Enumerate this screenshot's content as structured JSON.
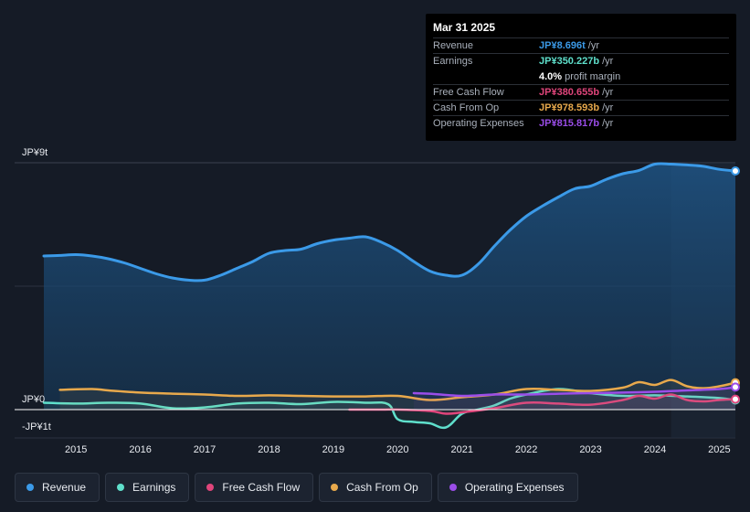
{
  "tooltip": {
    "date": "Mar 31 2025",
    "rows": [
      {
        "label": "Revenue",
        "value": "JP¥8.696t",
        "unit": "/yr",
        "color": "#3b9ae8"
      },
      {
        "label": "Earnings",
        "value": "JP¥350.227b",
        "unit": "/yr",
        "color": "#5fe0cc"
      },
      {
        "label": "",
        "value": "4.0%",
        "unit": "profit margin",
        "color": "#ffffff"
      },
      {
        "label": "Free Cash Flow",
        "value": "JP¥380.655b",
        "unit": "/yr",
        "color": "#e0457b"
      },
      {
        "label": "Cash From Op",
        "value": "JP¥978.593b",
        "unit": "/yr",
        "color": "#e8a94c"
      },
      {
        "label": "Operating Expenses",
        "value": "JP¥815.817b",
        "unit": "/yr",
        "color": "#9a4de8"
      }
    ]
  },
  "legend": [
    {
      "label": "Revenue",
      "color": "#3b9ae8"
    },
    {
      "label": "Earnings",
      "color": "#5fe0cc"
    },
    {
      "label": "Free Cash Flow",
      "color": "#e0457b"
    },
    {
      "label": "Cash From Op",
      "color": "#e8a94c"
    },
    {
      "label": "Operating Expenses",
      "color": "#9a4de8"
    }
  ],
  "chart_data": {
    "type": "area",
    "title": "",
    "xlabel": "",
    "ylabel": "",
    "y_units": "JP¥ trillion",
    "ylim": [
      -1,
      9
    ],
    "xlim": [
      2014.5,
      2025.25
    ],
    "y_tick_labels": [
      {
        "value": 9,
        "label": "JP¥9t"
      },
      {
        "value": 0,
        "label": "JP¥0"
      },
      {
        "value": -1,
        "label": "-JP¥1t"
      }
    ],
    "x_ticks": [
      2015,
      2016,
      2017,
      2018,
      2019,
      2020,
      2021,
      2022,
      2023,
      2024,
      2025
    ],
    "x_tick_labels": [
      "2015",
      "2016",
      "2017",
      "2018",
      "2019",
      "2020",
      "2021",
      "2022",
      "2023",
      "2024",
      "2025"
    ],
    "highlight_from": 2024.25,
    "series": [
      {
        "name": "Revenue",
        "color": "#3b9ae8",
        "fill": true,
        "x": [
          2014.5,
          2014.75,
          2015.0,
          2015.25,
          2015.5,
          2015.75,
          2016.0,
          2016.25,
          2016.5,
          2016.75,
          2017.0,
          2017.25,
          2017.5,
          2017.75,
          2018.0,
          2018.25,
          2018.5,
          2018.75,
          2019.0,
          2019.25,
          2019.5,
          2019.75,
          2020.0,
          2020.25,
          2020.5,
          2020.75,
          2021.0,
          2021.25,
          2021.5,
          2021.75,
          2022.0,
          2022.25,
          2022.5,
          2022.75,
          2023.0,
          2023.25,
          2023.5,
          2023.75,
          2024.0,
          2024.25,
          2024.5,
          2024.75,
          2025.0,
          2025.25
        ],
        "values": [
          5.6,
          5.62,
          5.65,
          5.6,
          5.5,
          5.35,
          5.15,
          4.95,
          4.8,
          4.72,
          4.72,
          4.9,
          5.15,
          5.4,
          5.7,
          5.8,
          5.85,
          6.05,
          6.18,
          6.25,
          6.3,
          6.1,
          5.8,
          5.4,
          5.05,
          4.9,
          4.9,
          5.3,
          5.95,
          6.55,
          7.05,
          7.42,
          7.75,
          8.05,
          8.15,
          8.4,
          8.6,
          8.72,
          8.95,
          8.95,
          8.92,
          8.87,
          8.76,
          8.7
        ]
      },
      {
        "name": "Earnings",
        "color": "#5fe0cc",
        "fill": false,
        "x": [
          2014.5,
          2015.0,
          2015.5,
          2016.0,
          2016.5,
          2017.0,
          2017.5,
          2018.0,
          2018.5,
          2019.0,
          2019.5,
          2019.85,
          2020.0,
          2020.25,
          2020.5,
          2020.75,
          2021.0,
          2021.25,
          2021.5,
          2021.75,
          2022.0,
          2022.5,
          2023.0,
          2023.5,
          2024.0,
          2024.5,
          2025.0,
          2025.25
        ],
        "values": [
          0.25,
          0.22,
          0.25,
          0.22,
          0.05,
          0.08,
          0.22,
          0.25,
          0.2,
          0.28,
          0.25,
          0.2,
          -0.35,
          -0.45,
          -0.5,
          -0.65,
          -0.15,
          0.0,
          0.15,
          0.4,
          0.55,
          0.75,
          0.6,
          0.5,
          0.52,
          0.48,
          0.42,
          0.35
        ]
      },
      {
        "name": "Free Cash Flow",
        "color": "#e0457b",
        "fill": false,
        "x": [
          2019.25,
          2019.75,
          2020.0,
          2020.5,
          2020.75,
          2021.0,
          2021.5,
          2022.0,
          2022.5,
          2023.0,
          2023.5,
          2023.75,
          2024.0,
          2024.25,
          2024.5,
          2024.75,
          2025.0,
          2025.25
        ],
        "values": [
          0.0,
          0.0,
          0.0,
          -0.05,
          -0.15,
          -0.1,
          0.05,
          0.25,
          0.22,
          0.18,
          0.35,
          0.5,
          0.4,
          0.55,
          0.35,
          0.3,
          0.35,
          0.38
        ]
      },
      {
        "name": "Cash From Op",
        "color": "#e8a94c",
        "fill": false,
        "x": [
          2014.75,
          2015.25,
          2015.5,
          2016.0,
          2016.5,
          2017.0,
          2017.5,
          2018.0,
          2018.5,
          2019.0,
          2019.5,
          2020.0,
          2020.5,
          2021.0,
          2021.5,
          2022.0,
          2022.5,
          2023.0,
          2023.5,
          2023.75,
          2024.0,
          2024.25,
          2024.5,
          2024.75,
          2025.0,
          2025.25
        ],
        "values": [
          0.72,
          0.75,
          0.7,
          0.62,
          0.58,
          0.55,
          0.5,
          0.52,
          0.5,
          0.48,
          0.48,
          0.5,
          0.35,
          0.45,
          0.55,
          0.75,
          0.72,
          0.68,
          0.8,
          1.0,
          0.9,
          1.08,
          0.85,
          0.78,
          0.85,
          0.98
        ]
      },
      {
        "name": "Operating Expenses",
        "color": "#9a4de8",
        "fill": false,
        "x": [
          2020.25,
          2020.5,
          2021.0,
          2021.5,
          2022.0,
          2022.5,
          2023.0,
          2023.5,
          2024.0,
          2024.5,
          2025.0,
          2025.25
        ],
        "values": [
          0.6,
          0.58,
          0.5,
          0.55,
          0.55,
          0.58,
          0.6,
          0.62,
          0.65,
          0.7,
          0.75,
          0.82
        ]
      }
    ]
  }
}
